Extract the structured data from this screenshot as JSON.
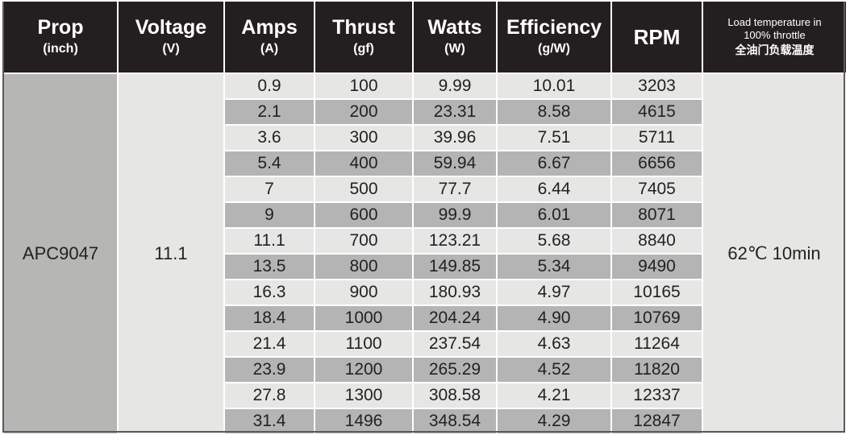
{
  "headers": [
    {
      "main": "Prop",
      "sub": "(inch)"
    },
    {
      "main": "Voltage",
      "sub": "(V)"
    },
    {
      "main": "Amps",
      "sub": "(A)"
    },
    {
      "main": "Thrust",
      "sub": "(gf)"
    },
    {
      "main": "Watts",
      "sub": "(W)"
    },
    {
      "main": "Efficiency",
      "sub": "(g/W)"
    },
    {
      "main": "RPM",
      "sub": ""
    },
    {
      "line1": "Load temperature in",
      "line2": "100% throttle",
      "cn": "全油门负载温度"
    }
  ],
  "prop": "APC9047",
  "voltage": "11.1",
  "load_temperature": "62℃ 10min",
  "rows": [
    {
      "amps": "0.9",
      "thrust": "100",
      "watts": "9.99",
      "efficiency": "10.01",
      "rpm": "3203"
    },
    {
      "amps": "2.1",
      "thrust": "200",
      "watts": "23.31",
      "efficiency": "8.58",
      "rpm": "4615"
    },
    {
      "amps": "3.6",
      "thrust": "300",
      "watts": "39.96",
      "efficiency": "7.51",
      "rpm": "5711"
    },
    {
      "amps": "5.4",
      "thrust": "400",
      "watts": "59.94",
      "efficiency": "6.67",
      "rpm": "6656"
    },
    {
      "amps": "7",
      "thrust": "500",
      "watts": "77.7",
      "efficiency": "6.44",
      "rpm": "7405"
    },
    {
      "amps": "9",
      "thrust": "600",
      "watts": "99.9",
      "efficiency": "6.01",
      "rpm": "8071"
    },
    {
      "amps": "11.1",
      "thrust": "700",
      "watts": "123.21",
      "efficiency": "5.68",
      "rpm": "8840"
    },
    {
      "amps": "13.5",
      "thrust": "800",
      "watts": "149.85",
      "efficiency": "5.34",
      "rpm": "9490"
    },
    {
      "amps": "16.3",
      "thrust": "900",
      "watts": "180.93",
      "efficiency": "4.97",
      "rpm": "10165"
    },
    {
      "amps": "18.4",
      "thrust": "1000",
      "watts": "204.24",
      "efficiency": "4.90",
      "rpm": "10769"
    },
    {
      "amps": "21.4",
      "thrust": "1100",
      "watts": "237.54",
      "efficiency": "4.63",
      "rpm": "11264"
    },
    {
      "amps": "23.9",
      "thrust": "1200",
      "watts": "265.29",
      "efficiency": "4.52",
      "rpm": "11820"
    },
    {
      "amps": "27.8",
      "thrust": "1300",
      "watts": "308.58",
      "efficiency": "4.21",
      "rpm": "12337"
    },
    {
      "amps": "31.4",
      "thrust": "1496",
      "watts": "348.54",
      "efficiency": "4.29",
      "rpm": "12847"
    }
  ]
}
